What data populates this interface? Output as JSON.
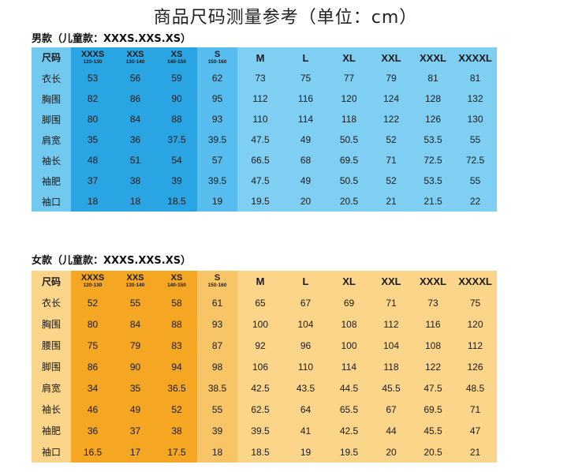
{
  "title": "商品尺码测量参考（单位：cm）",
  "men": {
    "subtitle": "男款（儿童款：XXXS.XXS.XS）",
    "header": [
      {
        "size": "尺码",
        "range": ""
      },
      {
        "size": "XXXS",
        "range": "120-130"
      },
      {
        "size": "XXS",
        "range": "130-140"
      },
      {
        "size": "XS",
        "range": "140-150"
      },
      {
        "size": "S",
        "range": "150-160"
      },
      {
        "size": "M",
        "range": ""
      },
      {
        "size": "L",
        "range": ""
      },
      {
        "size": "XL",
        "range": ""
      },
      {
        "size": "XXL",
        "range": ""
      },
      {
        "size": "XXXL",
        "range": ""
      },
      {
        "size": "XXXXL",
        "range": ""
      }
    ],
    "rows": [
      {
        "label": "衣长",
        "values": [
          "53",
          "56",
          "59",
          "62",
          "73",
          "75",
          "77",
          "79",
          "81",
          "81"
        ]
      },
      {
        "label": "胸围",
        "values": [
          "82",
          "86",
          "90",
          "95",
          "112",
          "116",
          "120",
          "124",
          "128",
          "132"
        ]
      },
      {
        "label": "脚围",
        "values": [
          "80",
          "84",
          "88",
          "93",
          "110",
          "114",
          "118",
          "122",
          "126",
          "130"
        ]
      },
      {
        "label": "肩宽",
        "values": [
          "35",
          "36",
          "37.5",
          "39.5",
          "47.5",
          "49",
          "50.5",
          "52",
          "53.5",
          "55"
        ]
      },
      {
        "label": "袖长",
        "values": [
          "48",
          "51",
          "54",
          "57",
          "66.5",
          "68",
          "69.5",
          "71",
          "72.5",
          "72.5"
        ]
      },
      {
        "label": "袖肥",
        "values": [
          "37",
          "38",
          "39",
          "39.5",
          "47.5",
          "49",
          "50.5",
          "52",
          "53.5",
          "55"
        ]
      },
      {
        "label": "袖口",
        "values": [
          "18",
          "18",
          "18.5",
          "19",
          "19.5",
          "20",
          "20.5",
          "21",
          "21.5",
          "22"
        ]
      }
    ]
  },
  "women": {
    "subtitle": "女款（儿童款：XXXS.XXS.XS）",
    "header": [
      {
        "size": "尺码",
        "range": ""
      },
      {
        "size": "XXXS",
        "range": "120-130"
      },
      {
        "size": "XXS",
        "range": "130-140"
      },
      {
        "size": "XS",
        "range": "140-150"
      },
      {
        "size": "S",
        "range": "150-160"
      },
      {
        "size": "M",
        "range": ""
      },
      {
        "size": "L",
        "range": ""
      },
      {
        "size": "XL",
        "range": ""
      },
      {
        "size": "XXL",
        "range": ""
      },
      {
        "size": "XXXL",
        "range": ""
      },
      {
        "size": "XXXXL",
        "range": ""
      }
    ],
    "rows": [
      {
        "label": "衣长",
        "values": [
          "52",
          "55",
          "58",
          "61",
          "65",
          "67",
          "69",
          "71",
          "73",
          "75"
        ]
      },
      {
        "label": "胸围",
        "values": [
          "80",
          "84",
          "88",
          "93",
          "100",
          "104",
          "108",
          "112",
          "116",
          "120"
        ]
      },
      {
        "label": "腰围",
        "values": [
          "75",
          "79",
          "83",
          "87",
          "92",
          "96",
          "100",
          "104",
          "108",
          "112"
        ]
      },
      {
        "label": "脚围",
        "values": [
          "86",
          "90",
          "94",
          "98",
          "106",
          "110",
          "114",
          "118",
          "122",
          "126"
        ]
      },
      {
        "label": "肩宽",
        "values": [
          "34",
          "35",
          "36.5",
          "38.5",
          "42.5",
          "43.5",
          "44.5",
          "45.5",
          "47.5",
          "48.5"
        ]
      },
      {
        "label": "袖长",
        "values": [
          "46",
          "49",
          "52",
          "55",
          "62.5",
          "64",
          "65.5",
          "67",
          "69.5",
          "71"
        ]
      },
      {
        "label": "袖肥",
        "values": [
          "36",
          "37",
          "38",
          "39",
          "39.5",
          "41",
          "42.5",
          "44",
          "45.5",
          "47"
        ]
      },
      {
        "label": "袖口",
        "values": [
          "16.5",
          "17",
          "17.5",
          "18",
          "18.5",
          "19",
          "19.5",
          "20",
          "20.5",
          "21"
        ]
      }
    ]
  },
  "colors": {
    "men_light": "#72c9f0",
    "men_dark": "#29a5e3",
    "women_light": "#fbd58a",
    "women_dark": "#f5a623"
  }
}
